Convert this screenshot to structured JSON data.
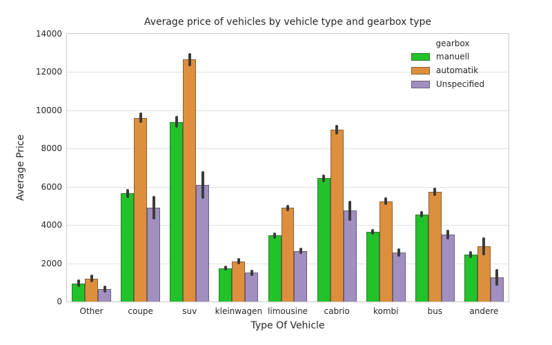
{
  "chart_data": {
    "type": "bar",
    "title": "Average price of vehicles by vehicle type and gearbox type",
    "xlabel": "Type Of Vehicle",
    "ylabel": "Average Price",
    "legend_title": "gearbox",
    "legend_position": "upper right",
    "grid": true,
    "ylim": [
      0,
      14000
    ],
    "yticks": [
      0,
      2000,
      4000,
      6000,
      8000,
      10000,
      12000,
      14000
    ],
    "categories": [
      "Other",
      "coupe",
      "suv",
      "kleinwagen",
      "limousine",
      "cabrio",
      "kombi",
      "bus",
      "andere"
    ],
    "series": [
      {
        "name": "manuell",
        "color": "#22c32a",
        "values": [
          950,
          5650,
          9400,
          1750,
          3450,
          6450,
          3650,
          4550,
          2450
        ],
        "errors": [
          120,
          150,
          240,
          70,
          80,
          130,
          80,
          90,
          110
        ]
      },
      {
        "name": "automatik",
        "color": "#de8f3d",
        "values": [
          1200,
          9600,
          12650,
          2100,
          4900,
          9000,
          5250,
          5750,
          2900
        ],
        "errors": [
          120,
          200,
          280,
          90,
          90,
          180,
          110,
          140,
          400
        ]
      },
      {
        "name": "Unspecified",
        "color": "#a08fc0",
        "values": [
          650,
          4900,
          6100,
          1500,
          2650,
          4750,
          2550,
          3500,
          1250
        ],
        "errors": [
          100,
          550,
          660,
          90,
          100,
          450,
          140,
          170,
          360
        ]
      }
    ],
    "error_bar_color": "#3b3b3b"
  },
  "style_colors": {
    "grid": "#e1e1e1",
    "spine": "#c8c8c8",
    "text": "#262626",
    "background": "#ffffff"
  }
}
